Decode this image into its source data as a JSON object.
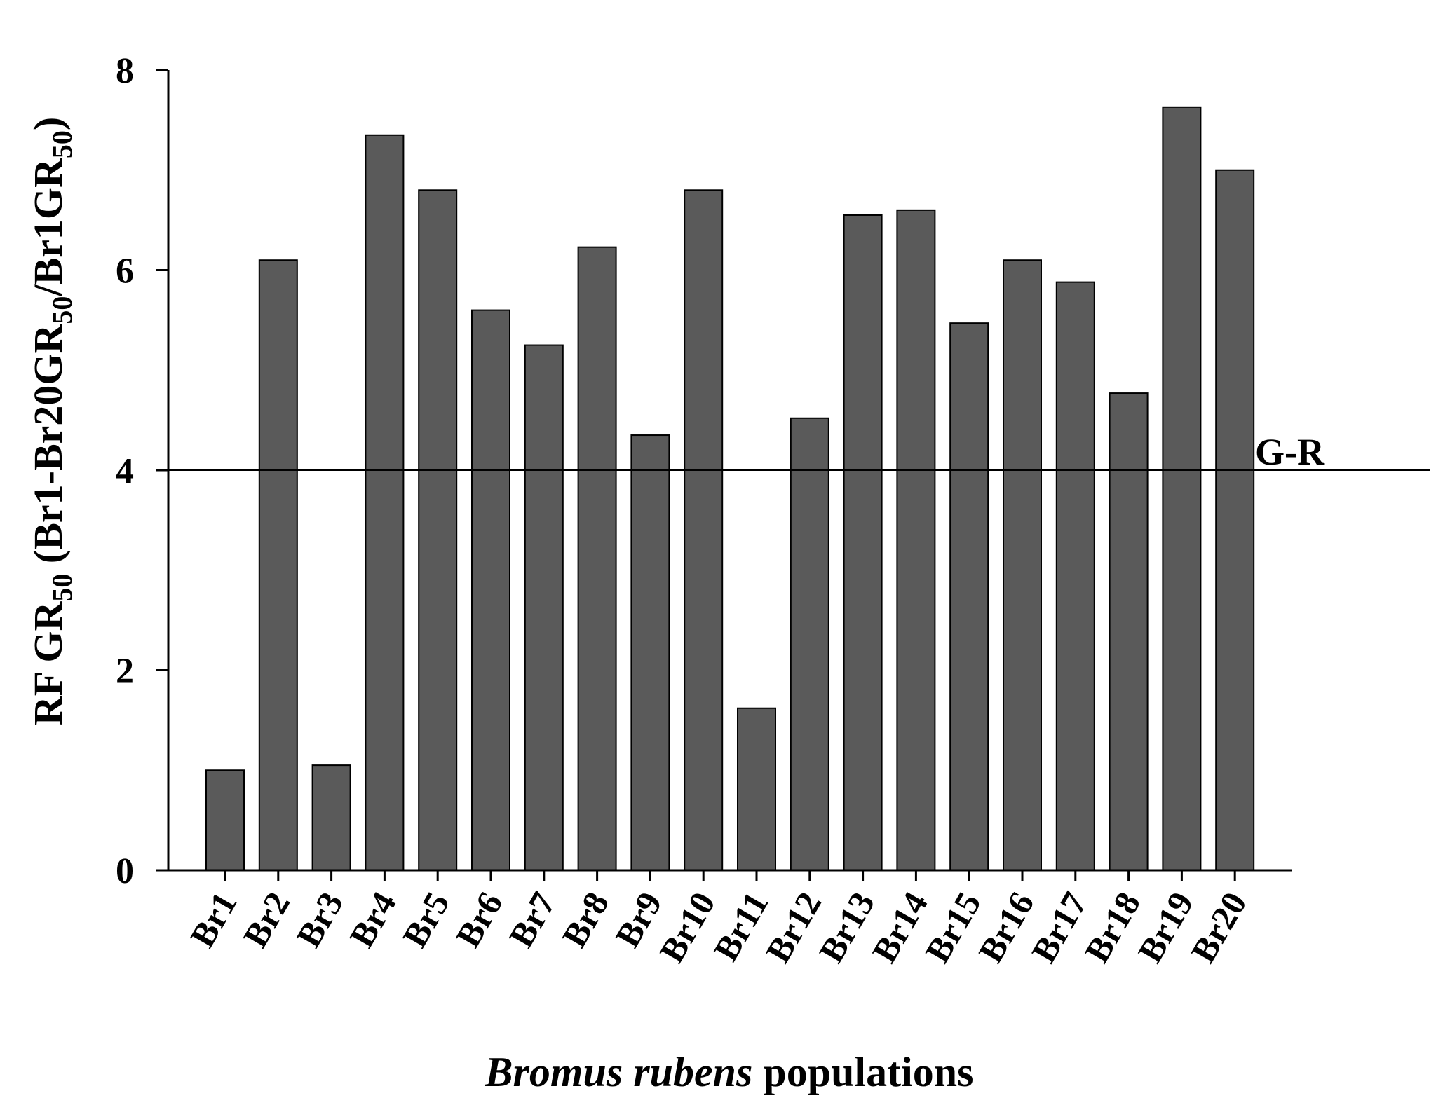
{
  "chart_data": {
    "type": "bar",
    "title": "",
    "xlabel_italic": "Bromus rubens",
    "xlabel_rest": " populations",
    "ylabel": {
      "main": "RF GR",
      "sub1": "50",
      "mid": " (Br1-Br20GR",
      "sub2": "50",
      "mid2": "/Br1GR",
      "sub3": "50",
      "end": ")"
    },
    "ylim": [
      0,
      8
    ],
    "yticks": [
      "0",
      "2",
      "4",
      "6",
      "8"
    ],
    "categories": [
      "Br1",
      "Br2",
      "Br3",
      "Br4",
      "Br5",
      "Br6",
      "Br7",
      "Br8",
      "Br9",
      "Br10",
      "Br11",
      "Br12",
      "Br13",
      "Br14",
      "Br15",
      "Br16",
      "Br17",
      "Br18",
      "Br19",
      "Br20"
    ],
    "values": [
      1.0,
      6.1,
      1.05,
      7.35,
      6.8,
      5.6,
      5.25,
      6.23,
      4.35,
      6.8,
      1.62,
      4.52,
      6.55,
      6.6,
      5.47,
      6.1,
      5.88,
      4.77,
      7.63,
      7.0
    ],
    "reference_line": {
      "value": 4,
      "label": "G-R"
    },
    "bar_color": "#5a5a5a",
    "grid": false,
    "legend": "none"
  }
}
